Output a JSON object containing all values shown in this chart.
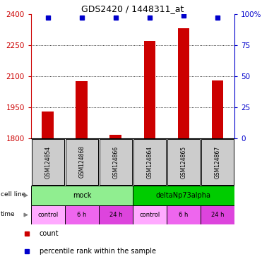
{
  "title": "GDS2420 / 1448311_at",
  "samples": [
    "GSM124854",
    "GSM124868",
    "GSM124866",
    "GSM124864",
    "GSM124865",
    "GSM124867"
  ],
  "counts": [
    1928,
    2075,
    1815,
    2270,
    2330,
    2080
  ],
  "percentile_ranks": [
    97,
    97,
    97,
    97,
    99,
    97
  ],
  "ylim_left": [
    1800,
    2400
  ],
  "ylim_right": [
    0,
    100
  ],
  "yticks_left": [
    1800,
    1950,
    2100,
    2250,
    2400
  ],
  "yticks_right": [
    0,
    25,
    50,
    75,
    100
  ],
  "cell_line_labels": [
    "mock",
    "deltaNp73alpha"
  ],
  "cell_line_colors": [
    "#90ee90",
    "#00cc00"
  ],
  "time_labels": [
    "control",
    "6 h",
    "24 h",
    "control",
    "6 h",
    "24 h"
  ],
  "time_colors": [
    "#ffaaff",
    "#ee66ee",
    "#dd44dd",
    "#ffaaff",
    "#ee66ee",
    "#dd44dd"
  ],
  "bar_color": "#cc0000",
  "dot_color": "#0000cc",
  "label_color_left": "#cc0000",
  "label_color_right": "#0000cc",
  "sample_bg_color": "#cccccc",
  "legend_count_color": "#cc0000",
  "legend_pct_color": "#0000cc",
  "bar_width": 0.35
}
